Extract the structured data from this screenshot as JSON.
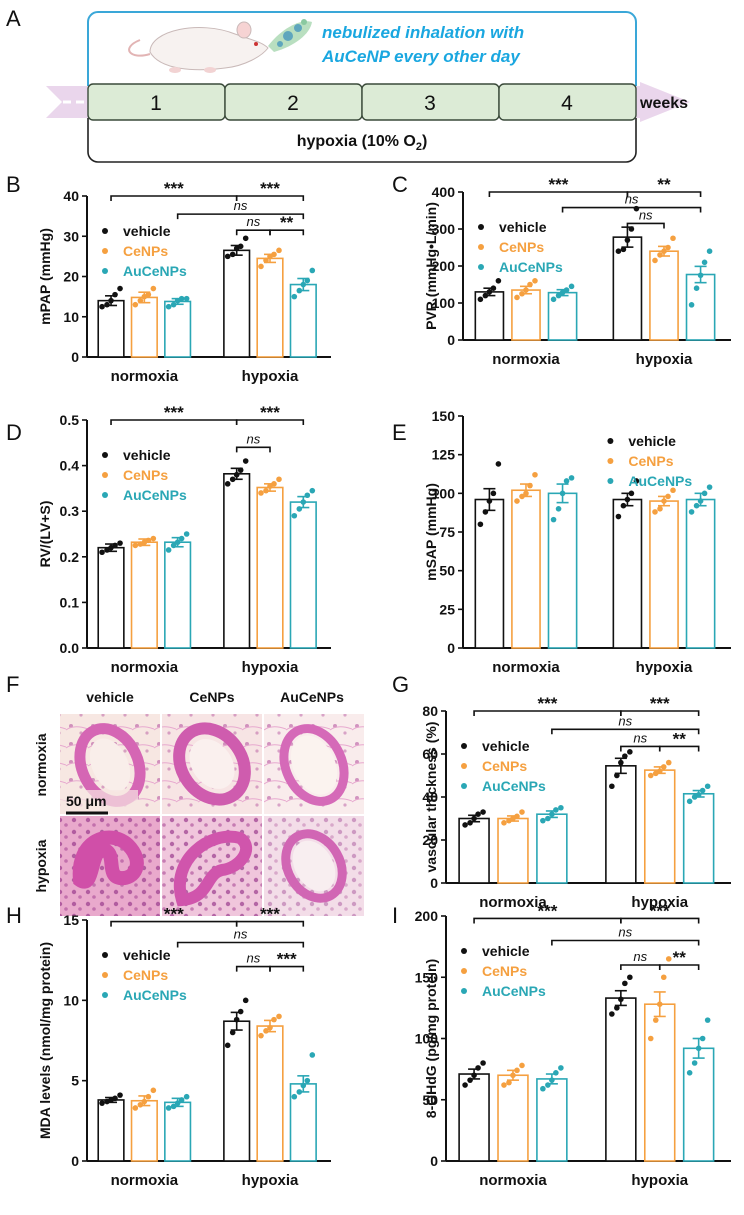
{
  "colors": {
    "vehicle": "#111111",
    "CeNPs": "#F5A040",
    "AuCeNPs": "#2AA7B5",
    "teal_text": "#1AA7E0",
    "timeline_fill": "#DCEBD6",
    "arrow_fill": "#EAD6EC"
  },
  "panelA": {
    "letter": "A",
    "treatment_line1": "nebulized inhalation with",
    "treatment_line2": "AuCeNP every other day",
    "weeks": [
      "1",
      "2",
      "3",
      "4"
    ],
    "weeks_label": "weeks",
    "hypoxia_label": "hypoxia (10% O",
    "o2_sub": "2",
    "close_paren": ")"
  },
  "panelF": {
    "letter": "F",
    "col_labels": [
      "vehicle",
      "CeNPs",
      "AuCeNPs"
    ],
    "row_labels": [
      "normoxia",
      "hypoxia"
    ],
    "scale_label": "50 μm"
  },
  "chart_data": [
    {
      "id": "B",
      "letter": "B",
      "type": "bar",
      "ylabel": "mPAP (mmHg)",
      "ylim": [
        0,
        40
      ],
      "yticks": [
        "0",
        "10",
        "20",
        "30",
        "40"
      ],
      "groups": [
        "normoxia",
        "hypoxia"
      ],
      "series_names": [
        "vehicle",
        "CeNPs",
        "AuCeNPs"
      ],
      "means": [
        [
          14,
          14.8,
          13.8
        ],
        [
          26.5,
          24.5,
          18
        ]
      ],
      "sems": [
        [
          1.2,
          1.3,
          0.7
        ],
        [
          1.2,
          1.0,
          1.5
        ]
      ],
      "points": [
        [
          [
            12.5,
            13,
            14,
            15.5,
            17
          ],
          [
            13,
            14,
            15,
            15.5,
            17
          ],
          [
            12.5,
            13,
            14,
            14.5,
            14.5
          ]
        ],
        [
          [
            25,
            25.5,
            27,
            27.5,
            29.5
          ],
          [
            22.5,
            24,
            25,
            25.5,
            26.5
          ],
          [
            15,
            16.5,
            18,
            19,
            21.5
          ]
        ]
      ],
      "legend_pos": "top-left",
      "brackets": [
        {
          "from": "normoxia.vehicle",
          "to": "hypoxia.vehicle",
          "label": "***",
          "level": 40
        },
        {
          "from": "hypoxia.vehicle",
          "to": "hypoxia.AuCeNPs",
          "label": "***",
          "level": 40
        },
        {
          "from": "normoxia.AuCeNPs",
          "to": "hypoxia.AuCeNPs",
          "label": "ns",
          "level": 35.5
        },
        {
          "from": "hypoxia.vehicle",
          "to": "hypoxia.CeNPs",
          "label": "ns",
          "level": 31.5
        },
        {
          "from": "hypoxia.CeNPs",
          "to": "hypoxia.AuCeNPs",
          "label": "**",
          "level": 31.5
        }
      ]
    },
    {
      "id": "C",
      "letter": "C",
      "type": "bar",
      "ylabel": "PVR (mmHg•L/min)",
      "ylim": [
        0,
        400
      ],
      "yticks": [
        "0",
        "100",
        "200",
        "300",
        "400"
      ],
      "groups": [
        "normoxia",
        "hypoxia"
      ],
      "series_names": [
        "vehicle",
        "CeNPs",
        "AuCeNPs"
      ],
      "means": [
        [
          130,
          135,
          128
        ],
        [
          278,
          240,
          177
        ]
      ],
      "sems": [
        [
          10,
          10,
          8
        ],
        [
          27,
          13,
          22
        ]
      ],
      "points": [
        [
          [
            110,
            120,
            130,
            140,
            160
          ],
          [
            115,
            125,
            135,
            150,
            160
          ],
          [
            110,
            120,
            128,
            135,
            145
          ]
        ],
        [
          [
            240,
            245,
            270,
            300,
            355
          ],
          [
            215,
            230,
            240,
            250,
            275
          ],
          [
            95,
            140,
            175,
            210,
            240
          ]
        ]
      ],
      "legend_pos": "top-left",
      "brackets": [
        {
          "from": "normoxia.vehicle",
          "to": "hypoxia.vehicle",
          "label": "***",
          "level": 400
        },
        {
          "from": "hypoxia.vehicle",
          "to": "hypoxia.AuCeNPs",
          "label": "**",
          "level": 400
        },
        {
          "from": "normoxia.AuCeNPs",
          "to": "hypoxia.AuCeNPs",
          "label": "ns",
          "level": 358
        },
        {
          "from": "hypoxia.vehicle",
          "to": "hypoxia.CeNPs",
          "label": "ns",
          "level": 315
        }
      ]
    },
    {
      "id": "D",
      "letter": "D",
      "type": "bar",
      "ylabel": "RV/(LV+S)",
      "ylim": [
        0,
        0.5
      ],
      "yticks": [
        "0.0",
        "0.1",
        "0.2",
        "0.3",
        "0.4",
        "0.5"
      ],
      "groups": [
        "normoxia",
        "hypoxia"
      ],
      "series_names": [
        "vehicle",
        "CeNPs",
        "AuCeNPs"
      ],
      "means": [
        [
          0.22,
          0.232,
          0.232
        ],
        [
          0.382,
          0.352,
          0.32
        ]
      ],
      "sems": [
        [
          0.008,
          0.007,
          0.01
        ],
        [
          0.012,
          0.008,
          0.012
        ]
      ],
      "points": [
        [
          [
            0.21,
            0.215,
            0.22,
            0.225,
            0.23
          ],
          [
            0.225,
            0.228,
            0.232,
            0.236,
            0.24
          ],
          [
            0.215,
            0.225,
            0.232,
            0.24,
            0.25
          ]
        ],
        [
          [
            0.36,
            0.37,
            0.38,
            0.39,
            0.41
          ],
          [
            0.34,
            0.345,
            0.355,
            0.36,
            0.37
          ],
          [
            0.29,
            0.305,
            0.32,
            0.335,
            0.345
          ]
        ]
      ],
      "legend_pos": "top-left",
      "brackets": [
        {
          "from": "normoxia.vehicle",
          "to": "hypoxia.vehicle",
          "label": "***",
          "level": 0.5
        },
        {
          "from": "hypoxia.vehicle",
          "to": "hypoxia.AuCeNPs",
          "label": "***",
          "level": 0.5
        },
        {
          "from": "hypoxia.vehicle",
          "to": "hypoxia.CeNPs",
          "label": "ns",
          "level": 0.44
        }
      ]
    },
    {
      "id": "E",
      "letter": "E",
      "type": "bar",
      "ylabel": "mSAP (mmHg)",
      "ylim": [
        0,
        150
      ],
      "yticks": [
        "0",
        "25",
        "50",
        "75",
        "100",
        "125",
        "150"
      ],
      "groups": [
        "normoxia",
        "hypoxia"
      ],
      "series_names": [
        "vehicle",
        "CeNPs",
        "AuCeNPs"
      ],
      "means": [
        [
          96,
          102,
          100
        ],
        [
          96,
          95,
          96
        ]
      ],
      "sems": [
        [
          7,
          4,
          6
        ],
        [
          4,
          3,
          4
        ]
      ],
      "points": [
        [
          [
            80,
            88,
            95,
            100,
            119
          ],
          [
            95,
            98,
            100,
            105,
            112
          ],
          [
            83,
            90,
            100,
            108,
            110
          ]
        ],
        [
          [
            85,
            92,
            96,
            100,
            108
          ],
          [
            88,
            90,
            95,
            98,
            102
          ],
          [
            88,
            92,
            95,
            100,
            104
          ]
        ]
      ],
      "legend_pos": "top-right",
      "brackets": []
    },
    {
      "id": "G",
      "letter": "G",
      "type": "bar",
      "ylabel": "vascular thickness (%)",
      "ylim": [
        0,
        80
      ],
      "yticks": [
        "0",
        "20",
        "40",
        "60",
        "80"
      ],
      "groups": [
        "normoxia",
        "hypoxia"
      ],
      "series_names": [
        "vehicle",
        "CeNPs",
        "AuCeNPs"
      ],
      "means": [
        [
          30,
          30,
          32
        ],
        [
          54.5,
          52.5,
          41.5
        ]
      ],
      "sems": [
        [
          1.5,
          1.2,
          1.5
        ],
        [
          3.5,
          1.5,
          1.5
        ]
      ],
      "points": [
        [
          [
            27,
            28,
            30,
            32,
            33
          ],
          [
            28,
            29,
            30,
            31,
            33
          ],
          [
            29,
            30,
            32,
            34,
            35
          ]
        ],
        [
          [
            45,
            50,
            56,
            59,
            61
          ],
          [
            50,
            51,
            52,
            54,
            56
          ],
          [
            38,
            40,
            41,
            43,
            45
          ]
        ]
      ],
      "legend_pos": "top-left",
      "brackets": [
        {
          "from": "normoxia.vehicle",
          "to": "hypoxia.vehicle",
          "label": "***",
          "level": 80
        },
        {
          "from": "hypoxia.vehicle",
          "to": "hypoxia.AuCeNPs",
          "label": "***",
          "level": 80
        },
        {
          "from": "normoxia.AuCeNPs",
          "to": "hypoxia.AuCeNPs",
          "label": "ns",
          "level": 71.5
        },
        {
          "from": "hypoxia.vehicle",
          "to": "hypoxia.CeNPs",
          "label": "ns",
          "level": 63.5
        },
        {
          "from": "hypoxia.CeNPs",
          "to": "hypoxia.AuCeNPs",
          "label": "**",
          "level": 63.5
        }
      ]
    },
    {
      "id": "H",
      "letter": "H",
      "type": "bar",
      "ylabel": "MDA levels (nmol/mg protein)",
      "ylim": [
        0,
        15
      ],
      "yticks": [
        "0",
        "5",
        "10",
        "15"
      ],
      "groups": [
        "normoxia",
        "hypoxia"
      ],
      "series_names": [
        "vehicle",
        "CeNPs",
        "AuCeNPs"
      ],
      "means": [
        [
          3.8,
          3.75,
          3.65
        ],
        [
          8.7,
          8.4,
          4.8
        ]
      ],
      "sems": [
        [
          0.15,
          0.3,
          0.25
        ],
        [
          0.55,
          0.35,
          0.5
        ]
      ],
      "points": [
        [
          [
            3.6,
            3.7,
            3.8,
            3.9,
            4.1
          ],
          [
            3.3,
            3.5,
            3.7,
            4.0,
            4.4
          ],
          [
            3.3,
            3.4,
            3.6,
            3.8,
            4.0
          ]
        ],
        [
          [
            7.2,
            8.0,
            8.8,
            9.3,
            10.0
          ],
          [
            7.8,
            8.1,
            8.3,
            8.8,
            9.0
          ],
          [
            4.0,
            4.3,
            4.7,
            5.0,
            6.6
          ]
        ]
      ],
      "legend_pos": "top-left",
      "brackets": [
        {
          "from": "normoxia.vehicle",
          "to": "hypoxia.vehicle",
          "label": "***",
          "level": 14.9
        },
        {
          "from": "hypoxia.vehicle",
          "to": "hypoxia.AuCeNPs",
          "label": "***",
          "level": 14.9
        },
        {
          "from": "normoxia.AuCeNPs",
          "to": "hypoxia.AuCeNPs",
          "label": "ns",
          "level": 13.6
        },
        {
          "from": "hypoxia.vehicle",
          "to": "hypoxia.CeNPs",
          "label": "ns",
          "level": 12.1
        },
        {
          "from": "hypoxia.CeNPs",
          "to": "hypoxia.AuCeNPs",
          "label": "***",
          "level": 12.1
        }
      ]
    },
    {
      "id": "I",
      "letter": "I",
      "type": "bar",
      "ylabel": "8-OHdG (pg/mg protein)",
      "ylim": [
        0,
        200
      ],
      "yticks": [
        "0",
        "50",
        "100",
        "150",
        "200"
      ],
      "groups": [
        "normoxia",
        "hypoxia"
      ],
      "series_names": [
        "vehicle",
        "CeNPs",
        "AuCeNPs"
      ],
      "means": [
        [
          71,
          70,
          67
        ],
        [
          133,
          128,
          92
        ]
      ],
      "sems": [
        [
          4,
          4,
          4
        ],
        [
          6,
          10,
          8
        ]
      ],
      "points": [
        [
          [
            62,
            66,
            70,
            76,
            80
          ],
          [
            62,
            64,
            70,
            74,
            78
          ],
          [
            59,
            62,
            66,
            72,
            76
          ]
        ],
        [
          [
            120,
            125,
            132,
            145,
            150
          ],
          [
            100,
            115,
            128,
            150,
            165
          ],
          [
            72,
            80,
            92,
            100,
            115
          ]
        ]
      ],
      "legend_pos": "top-left",
      "brackets": [
        {
          "from": "normoxia.vehicle",
          "to": "hypoxia.vehicle",
          "label": "***",
          "level": 198
        },
        {
          "from": "hypoxia.vehicle",
          "to": "hypoxia.AuCeNPs",
          "label": "***",
          "level": 198
        },
        {
          "from": "normoxia.AuCeNPs",
          "to": "hypoxia.AuCeNPs",
          "label": "ns",
          "level": 180
        },
        {
          "from": "hypoxia.vehicle",
          "to": "hypoxia.CeNPs",
          "label": "ns",
          "level": 160
        },
        {
          "from": "hypoxia.CeNPs",
          "to": "hypoxia.AuCeNPs",
          "label": "**",
          "level": 160
        }
      ]
    }
  ]
}
